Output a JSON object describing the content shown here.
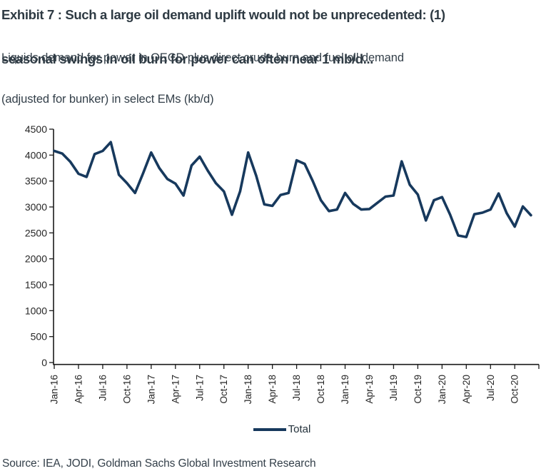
{
  "header": {
    "title_lines": [
      "Exhibit 7 : Such a large oil demand uplift would not be unprecedented: (1)",
      "seasonal swings in oil burn for power can often near 1 mb/d..."
    ],
    "subtitle_lines": [
      "Liquids demand for power in OECD plus direct crude burn and fuel oil demand",
      "(adjusted for bunker) in select EMs (kb/d)"
    ]
  },
  "chart_data": {
    "type": "line",
    "title": "Liquids demand for power in OECD plus direct crude burn and fuel oil demand (adjusted for bunker) in select EMs (kb/d)",
    "xlabel": "",
    "ylabel": "",
    "ylim": [
      0,
      4500
    ],
    "y_ticks": [
      0,
      500,
      1000,
      1500,
      2000,
      2500,
      3000,
      3500,
      4000,
      4500
    ],
    "x_tick_labels": [
      "Jan-16",
      "Apr-16",
      "Jul-16",
      "Oct-16",
      "Jan-17",
      "Apr-17",
      "Jul-17",
      "Oct-17",
      "Jan-18",
      "Apr-18",
      "Jul-18",
      "Oct-18",
      "Jan-19",
      "Apr-19",
      "Jul-19",
      "Oct-19",
      "Jan-20",
      "Apr-20",
      "Jul-20",
      "Oct-20"
    ],
    "grid": false,
    "legend_position": "bottom",
    "line_color": "#17395d",
    "axis_color": "#1a1a1a",
    "tick_label_color": "#262626",
    "x": [
      "Jan-16",
      "Feb-16",
      "Mar-16",
      "Apr-16",
      "May-16",
      "Jun-16",
      "Jul-16",
      "Aug-16",
      "Sep-16",
      "Oct-16",
      "Nov-16",
      "Dec-16",
      "Jan-17",
      "Feb-17",
      "Mar-17",
      "Apr-17",
      "May-17",
      "Jun-17",
      "Jul-17",
      "Aug-17",
      "Sep-17",
      "Oct-17",
      "Nov-17",
      "Dec-17",
      "Jan-18",
      "Feb-18",
      "Mar-18",
      "Apr-18",
      "May-18",
      "Jun-18",
      "Jul-18",
      "Aug-18",
      "Sep-18",
      "Oct-18",
      "Nov-18",
      "Dec-18",
      "Jan-19",
      "Feb-19",
      "Mar-19",
      "Apr-19",
      "May-19",
      "Jun-19",
      "Jul-19",
      "Aug-19",
      "Sep-19",
      "Oct-19",
      "Nov-19",
      "Dec-19",
      "Jan-20",
      "Feb-20",
      "Mar-20",
      "Apr-20",
      "May-20",
      "Jun-20",
      "Jul-20",
      "Aug-20",
      "Sep-20",
      "Oct-20",
      "Nov-20",
      "Dec-20"
    ],
    "series": [
      {
        "name": "Total",
        "values": [
          4080,
          4030,
          3870,
          3640,
          3580,
          4020,
          4080,
          4250,
          3620,
          3460,
          3270,
          3650,
          4050,
          3750,
          3540,
          3450,
          3220,
          3800,
          3970,
          3700,
          3460,
          3300,
          2850,
          3300,
          4050,
          3600,
          3050,
          3020,
          3230,
          3270,
          3900,
          3830,
          3500,
          3130,
          2920,
          2950,
          3270,
          3060,
          2950,
          2960,
          3080,
          3200,
          3220,
          3880,
          3430,
          3240,
          2740,
          3130,
          3190,
          2850,
          2450,
          2420,
          2860,
          2890,
          2950,
          3260,
          2880,
          2620,
          3010,
          2840
        ]
      }
    ]
  },
  "legend": {
    "label": "Total"
  },
  "footer": {
    "source": "Source: IEA, JODI, Goldman Sachs Global Investment Research"
  }
}
